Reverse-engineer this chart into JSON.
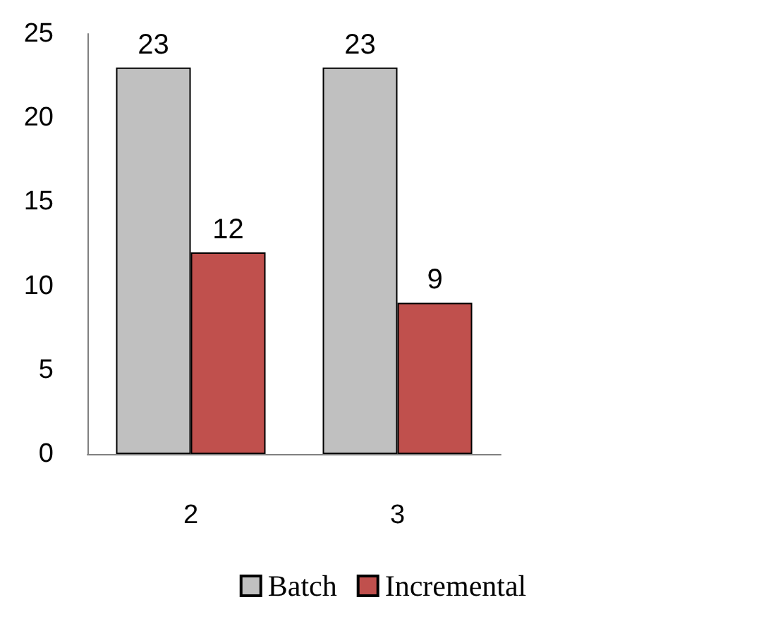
{
  "chart_data": {
    "type": "bar",
    "categories": [
      "2",
      "3"
    ],
    "series": [
      {
        "name": "Batch",
        "color": "#c0c0c0",
        "values": [
          23,
          23
        ]
      },
      {
        "name": "Incremental",
        "color": "#c0504d",
        "values": [
          12,
          9
        ]
      }
    ],
    "ylim": [
      0,
      25
    ],
    "yticks": [
      0,
      5,
      10,
      15,
      20,
      25
    ],
    "grid": false,
    "legend": "bottom",
    "data_labels": true
  }
}
